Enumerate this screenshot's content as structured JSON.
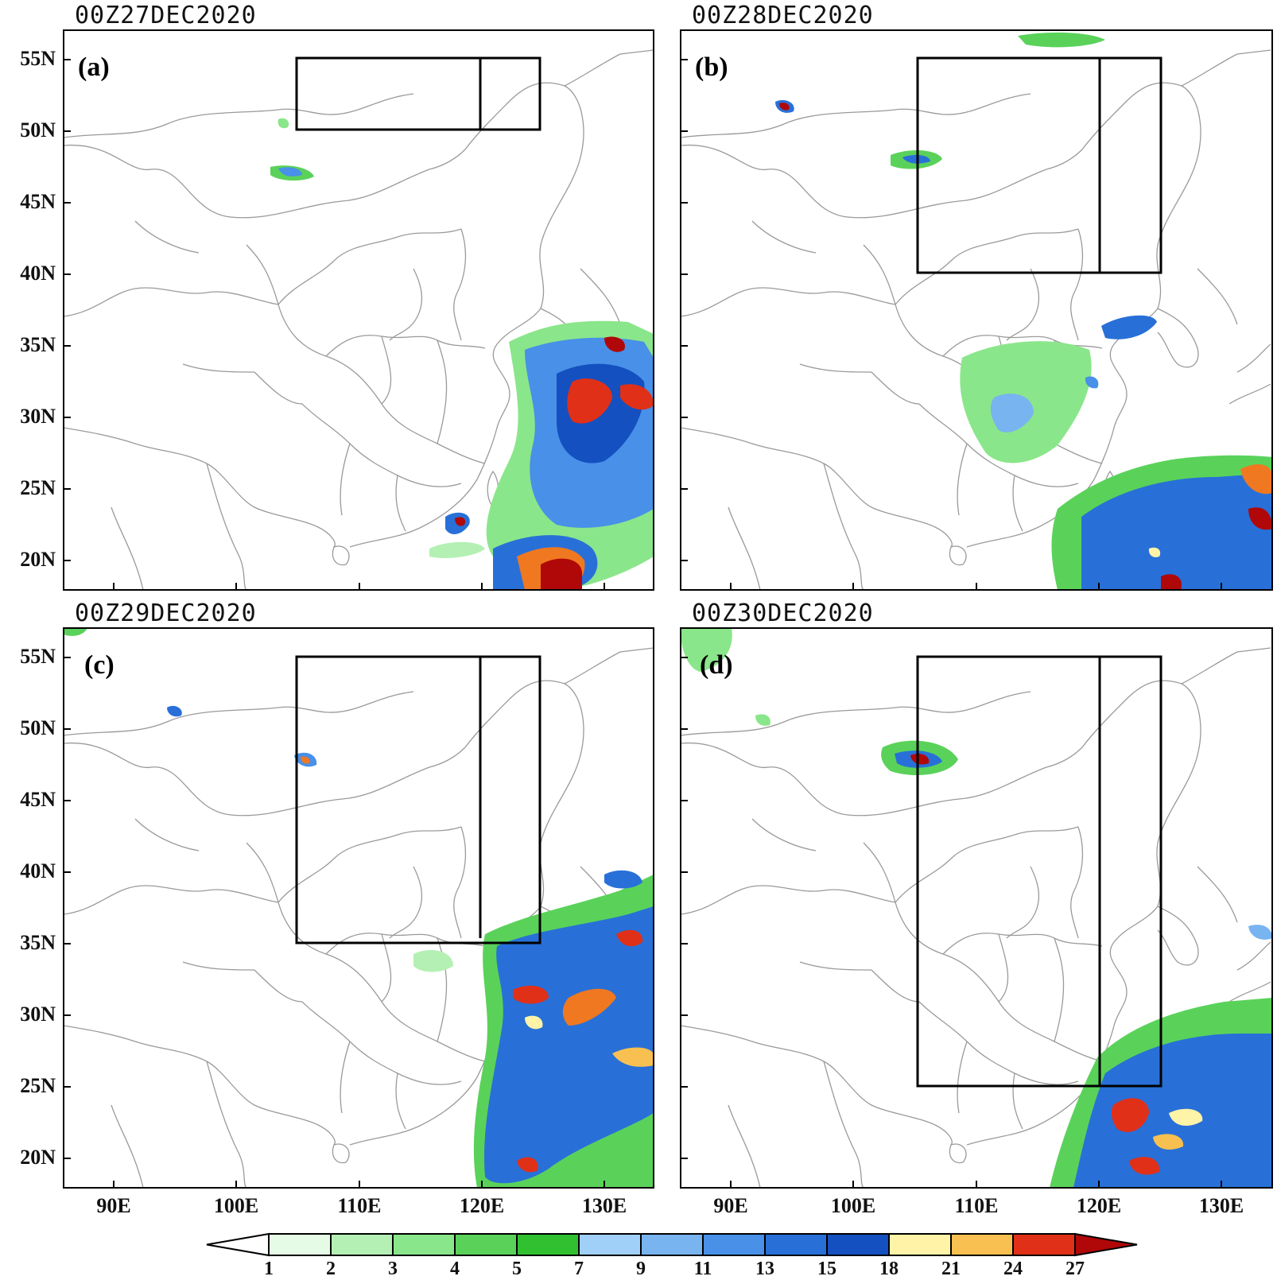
{
  "panels": [
    {
      "title": "00Z27DEC2020",
      "label": "(a)"
    },
    {
      "title": "00Z28DEC2020",
      "label": "(b)"
    },
    {
      "title": "00Z29DEC2020",
      "label": "(c)"
    },
    {
      "title": "00Z30DEC2020",
      "label": "(d)"
    }
  ],
  "lat_ticks": [
    "55N",
    "50N",
    "45N",
    "40N",
    "35N",
    "30N",
    "25N",
    "20N"
  ],
  "lon_ticks": [
    "90E",
    "100E",
    "110E",
    "120E",
    "130E"
  ],
  "colorbar": {
    "labels": [
      "1",
      "2",
      "3",
      "4",
      "5",
      "7",
      "9",
      "11",
      "13",
      "15",
      "18",
      "21",
      "24",
      "27"
    ],
    "colors": [
      "#e6fbe6",
      "#b4f0b4",
      "#8ae68a",
      "#5ad25a",
      "#30c030",
      "#a0d0f8",
      "#78b4f0",
      "#4890e8",
      "#2870d8",
      "#1450c0",
      "#fff3a8",
      "#f8c050",
      "#f07820",
      "#e03018",
      "#b00808"
    ]
  },
  "colors": {
    "map_line": "#9a9a9a",
    "frame": "#000000"
  }
}
